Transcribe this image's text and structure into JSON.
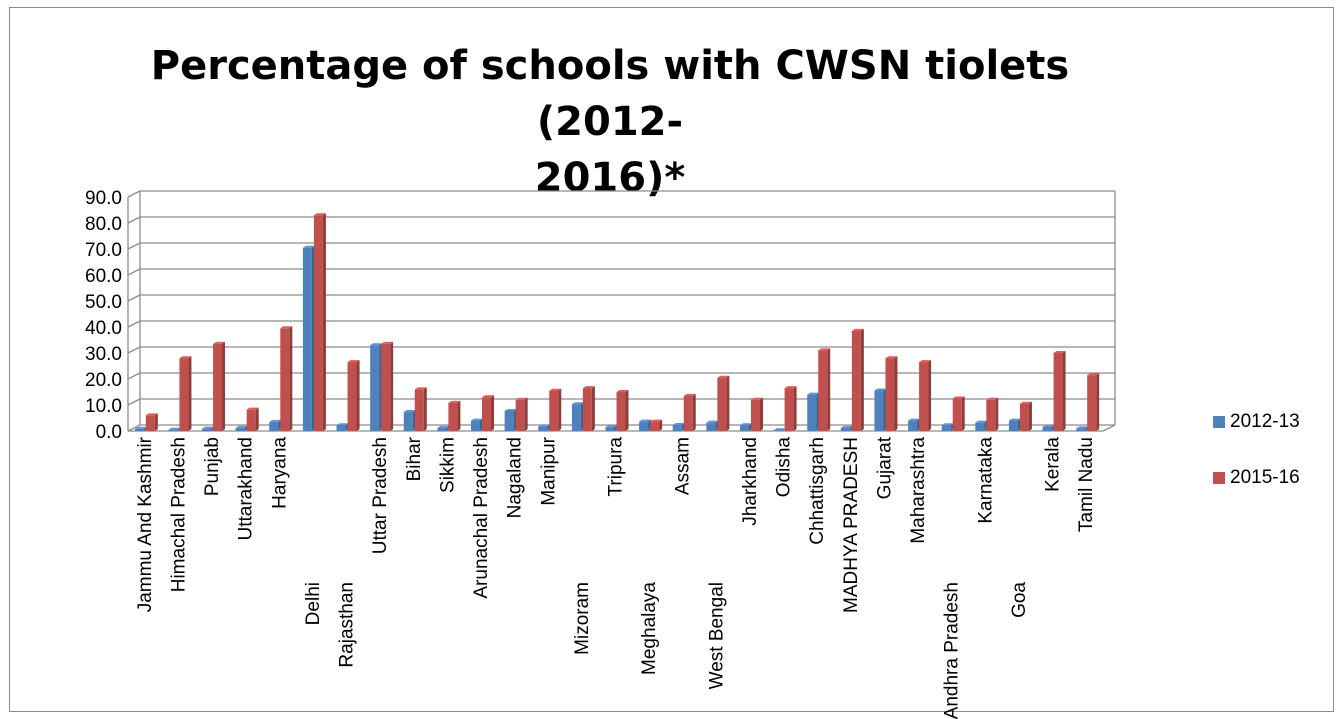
{
  "chart_data": {
    "type": "bar",
    "title": "Percentage of schools with CWSN tiolets (2012-2016)*",
    "title_lines": [
      "Percentage of schools with CWSN tiolets (2012-",
      "2016)*"
    ],
    "xlabel": "",
    "ylabel": "",
    "ylim": [
      0,
      90
    ],
    "yticks": [
      "0.0",
      "10.0",
      "20.0",
      "30.0",
      "40.0",
      "50.0",
      "60.0",
      "70.0",
      "80.0",
      "90.0"
    ],
    "grid": true,
    "legend_position": "right",
    "categories": [
      "Jammu And Kashmir",
      "Himachal Pradesh",
      "Punjab",
      "Uttarakhand",
      "Haryana",
      "Delhi",
      "Rajasthan",
      "Uttar Pradesh",
      "Bihar",
      "Sikkim",
      "Arunachal Pradesh",
      "Nagaland",
      "Manipur",
      "Mizoram",
      "Tripura",
      "Meghalaya",
      "Assam",
      "West Bengal",
      "Jharkhand",
      "Odisha",
      "Chhattisgarh",
      "MADHYA PRADESH",
      "Gujarat",
      "Maharashtra",
      "Andhra Pradesh",
      "Karnataka",
      "Goa",
      "Kerala",
      "Tamil Nadu"
    ],
    "series": [
      {
        "name": "2012-13",
        "color": "#4f81bd",
        "values": [
          0.8,
          0.5,
          0.9,
          1.2,
          3.5,
          70.5,
          2.2,
          33.0,
          7.3,
          1.2,
          4.0,
          7.7,
          1.8,
          10.3,
          1.5,
          3.6,
          2.3,
          3.2,
          2.2,
          0.3,
          14.0,
          1.2,
          15.6,
          4.0,
          2.2,
          3.2,
          4.0,
          1.6,
          1.0
        ]
      },
      {
        "name": "2015-16",
        "color": "#c0504d",
        "values": [
          6.0,
          28.0,
          33.5,
          8.2,
          39.5,
          83.0,
          26.5,
          33.5,
          16.0,
          10.8,
          13.0,
          12.0,
          15.5,
          16.5,
          15.0,
          3.6,
          13.5,
          20.5,
          12.0,
          16.5,
          31.0,
          38.5,
          28.0,
          26.5,
          12.5,
          12.0,
          10.5,
          30.0,
          21.5
        ]
      }
    ]
  }
}
